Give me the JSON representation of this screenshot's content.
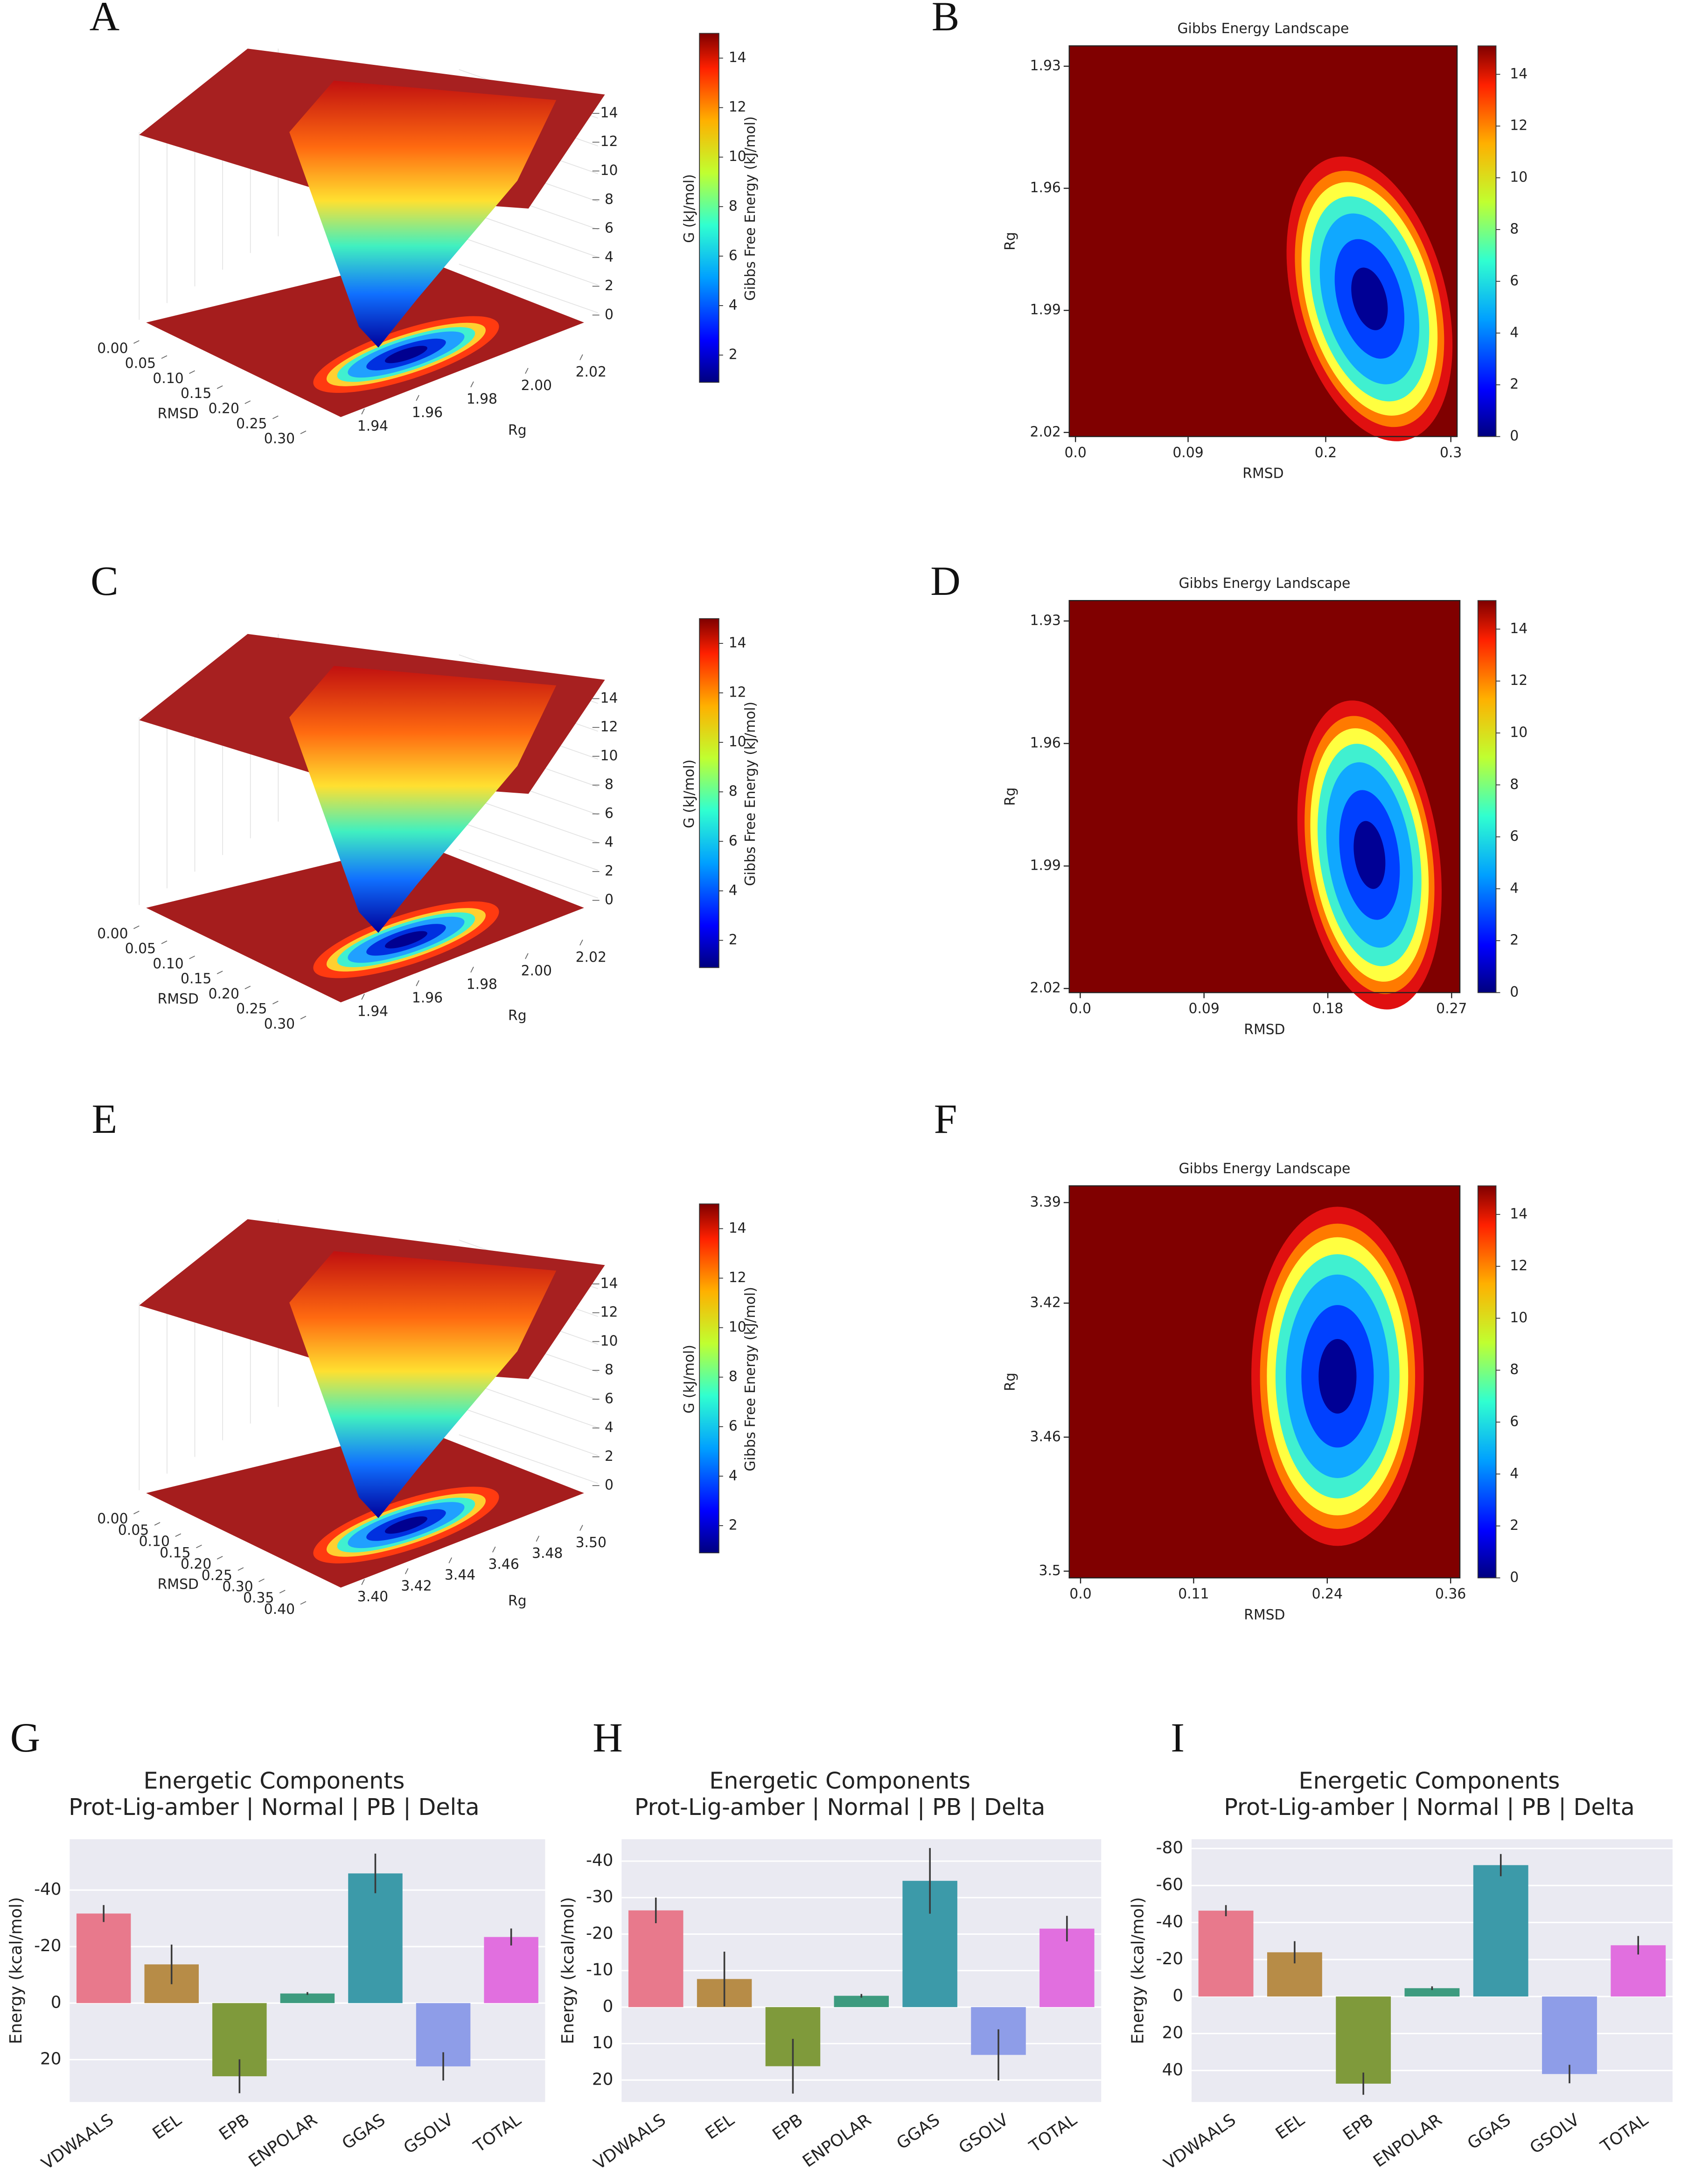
{
  "chart_data": [
    {
      "type": "surface3d",
      "panel_label": "A",
      "xlabel": "RMSD",
      "ylabel": "Rg",
      "zlabel": "G (kJ/mol)",
      "colorbar_label": "Gibbs Free Energy (kJ/mol)",
      "xlim": [
        0,
        0.3
      ],
      "xticks": [
        {
          "value": 0,
          "label": "0.00"
        },
        0.05,
        {
          "value": 0.1,
          "label": "0.10"
        },
        0.15,
        {
          "value": 0.2,
          "label": "0.20"
        },
        0.25,
        {
          "value": 0.3,
          "label": "0.30"
        }
      ],
      "ylim": [
        1.94,
        2.02
      ],
      "yticks": [
        1.94,
        1.96,
        1.98,
        {
          "value": 2,
          "label": "2.00"
        },
        2.02
      ],
      "zlim": [
        -1,
        15.5
      ],
      "zticks": [
        0,
        2,
        4,
        6,
        8,
        10,
        12,
        14
      ],
      "clim": [
        0.9,
        15
      ],
      "cticks": [
        2,
        4,
        6,
        8,
        10,
        12,
        14
      ]
    },
    {
      "type": "heatmap",
      "panel_label": "B",
      "title": "Gibbs Energy Landscape",
      "xlabel": "RMSD",
      "ylabel": "Rg",
      "xlim": [
        -0.005,
        0.305
      ],
      "xticks": [
        {
          "value": 0,
          "label": "0.0"
        },
        0.09,
        0.2,
        0.3
      ],
      "ylim": [
        2.021,
        1.925
      ],
      "yticks": [
        1.93,
        1.96,
        1.99,
        2.02
      ],
      "clim": [
        0,
        15.1
      ],
      "cticks": [
        0,
        2,
        4,
        6,
        8,
        10,
        12,
        14
      ]
    },
    {
      "type": "surface3d",
      "panel_label": "C",
      "xlabel": "RMSD",
      "ylabel": "Rg",
      "zlabel": "G (kJ/mol)",
      "colorbar_label": "Gibbs Free Energy (kJ/mol)",
      "xlim": [
        0,
        0.3
      ],
      "xticks": [
        {
          "value": 0,
          "label": "0.00"
        },
        0.05,
        {
          "value": 0.1,
          "label": "0.10"
        },
        0.15,
        {
          "value": 0.2,
          "label": "0.20"
        },
        0.25,
        {
          "value": 0.3,
          "label": "0.30"
        }
      ],
      "ylim": [
        1.94,
        2.02
      ],
      "yticks": [
        1.94,
        1.96,
        1.98,
        {
          "value": 2,
          "label": "2.00"
        },
        2.02
      ],
      "zlim": [
        -1,
        15.5
      ],
      "zticks": [
        0,
        2,
        4,
        6,
        8,
        10,
        12,
        14
      ],
      "clim": [
        0.9,
        15
      ],
      "cticks": [
        2,
        4,
        6,
        8,
        10,
        12,
        14
      ]
    },
    {
      "type": "heatmap",
      "panel_label": "D",
      "title": "Gibbs Energy Landscape",
      "xlabel": "RMSD",
      "ylabel": "Rg",
      "xlim": [
        -0.008,
        0.276
      ],
      "xticks": [
        {
          "value": 0,
          "label": "0.0"
        },
        0.09,
        0.18,
        0.27
      ],
      "ylim": [
        2.021,
        1.925
      ],
      "yticks": [
        1.93,
        1.96,
        1.99,
        2.02
      ],
      "clim": [
        0,
        15.1
      ],
      "cticks": [
        0,
        2,
        4,
        6,
        8,
        10,
        12,
        14
      ]
    },
    {
      "type": "surface3d",
      "panel_label": "E",
      "xlabel": "RMSD",
      "ylabel": "Rg",
      "zlabel": "G (kJ/mol)",
      "colorbar_label": "Gibbs Free Energy (kJ/mol)",
      "xlim": [
        0,
        0.4
      ],
      "xticks": [
        {
          "value": 0,
          "label": "0.00"
        },
        0.05,
        {
          "value": 0.1,
          "label": "0.10"
        },
        0.15,
        {
          "value": 0.2,
          "label": "0.20"
        },
        0.25,
        {
          "value": 0.3,
          "label": "0.30"
        },
        0.35,
        {
          "value": 0.4,
          "label": "0.40"
        }
      ],
      "ylim": [
        3.4,
        3.5
      ],
      "yticks": [
        {
          "value": 3.4,
          "label": "3.40"
        },
        3.42,
        3.44,
        3.46,
        3.48,
        {
          "value": 3.5,
          "label": "3.50"
        }
      ],
      "zlim": [
        -1,
        15.5
      ],
      "zticks": [
        0,
        2,
        4,
        6,
        8,
        10,
        12,
        14
      ],
      "clim": [
        0.9,
        15
      ],
      "cticks": [
        2,
        4,
        6,
        8,
        10,
        12,
        14
      ]
    },
    {
      "type": "heatmap",
      "panel_label": "F",
      "title": "Gibbs Energy Landscape",
      "xlabel": "RMSD",
      "ylabel": "Rg",
      "xlim": [
        -0.011,
        0.369
      ],
      "xticks": [
        {
          "value": 0,
          "label": "0.0"
        },
        0.11,
        0.24,
        0.36
      ],
      "ylim": [
        3.502,
        3.385
      ],
      "yticks": [
        3.39,
        3.42,
        3.46,
        3.5
      ],
      "clim": [
        0,
        15.1
      ],
      "cticks": [
        0,
        2,
        4,
        6,
        8,
        10,
        12,
        14
      ]
    },
    {
      "type": "bar",
      "panel_label": "G",
      "title": [
        "Energetic Components",
        "Prot-Lig-amber | Normal | PB | Delta"
      ],
      "ylabel": "Energy (kcal/mol)",
      "categories": [
        "VDWAALS",
        "EEL",
        "EPB",
        "ENPOLAR",
        "GGAS",
        "GSOLV",
        "TOTAL"
      ],
      "values": [
        -31.7,
        -13.7,
        25.9,
        -3.4,
        -45.9,
        22.4,
        -23.4
      ],
      "errors": [
        3,
        7,
        6,
        0.5,
        7,
        5,
        3
      ],
      "colors": [
        "#e8798c",
        "#b78c47",
        "#7f9a3b",
        "#3d9b7f",
        "#3c9aa9",
        "#8e9de8",
        "#e16fdf"
      ],
      "ylim": [
        35,
        -58
      ],
      "yticks": [
        -40,
        -20,
        0,
        20
      ],
      "grid": true
    },
    {
      "type": "bar",
      "panel_label": "H",
      "title": [
        "Energetic Components",
        "Prot-Lig-amber | Normal | PB | Delta"
      ],
      "ylabel": "Energy (kcal/mol)",
      "categories": [
        "VDWAALS",
        "EEL",
        "EPB",
        "ENPOLAR",
        "GGAS",
        "GSOLV",
        "TOTAL"
      ],
      "values": [
        -26.5,
        -7.7,
        16.2,
        -3.1,
        -34.6,
        13.1,
        -21.5
      ],
      "errors": [
        3.5,
        7.5,
        7.5,
        0.5,
        9,
        7,
        3.5
      ],
      "colors": [
        "#e8798c",
        "#b78c47",
        "#7f9a3b",
        "#3d9b7f",
        "#3c9aa9",
        "#8e9de8",
        "#e16fdf"
      ],
      "ylim": [
        26,
        -46
      ],
      "yticks": [
        -40,
        -30,
        -20,
        -10,
        0,
        10,
        20
      ],
      "grid": true
    },
    {
      "type": "bar",
      "panel_label": "I",
      "title": [
        "Energetic Components",
        "Prot-Lig-amber | Normal | PB | Delta"
      ],
      "ylabel": "Energy (kcal/mol)",
      "categories": [
        "VDWAALS",
        "EEL",
        "EPB",
        "ENPOLAR",
        "GGAS",
        "GSOLV",
        "TOTAL"
      ],
      "values": [
        -46.4,
        -23.9,
        47.1,
        -4.5,
        -71,
        41.9,
        -27.7
      ],
      "errors": [
        3,
        6,
        6,
        1,
        6,
        5,
        5
      ],
      "colors": [
        "#e8798c",
        "#b78c47",
        "#7f9a3b",
        "#3d9b7f",
        "#3c9aa9",
        "#8e9de8",
        "#e16fdf"
      ],
      "ylim": [
        57,
        -85
      ],
      "yticks": [
        -80,
        -60,
        -40,
        -20,
        0,
        20,
        40
      ],
      "grid": true
    }
  ]
}
